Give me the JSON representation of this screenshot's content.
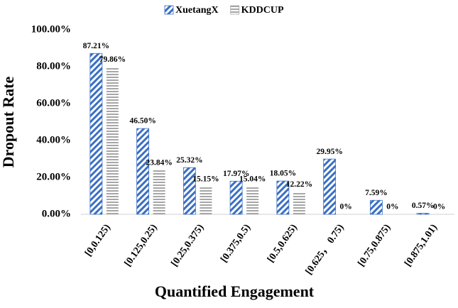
{
  "chart_data": {
    "type": "bar",
    "xlabel": "Quantified Engagement",
    "ylabel": "Dropout  Rate",
    "categories": [
      "[0,0.125)",
      "[0.125,0.25)",
      "[0.25,0.375)",
      "[0.375,0.5)",
      "[0.5,0.625)",
      "[0.625， 0.75)",
      "[0.75,0.875)",
      "[0.875,1.01)"
    ],
    "series": [
      {
        "name": "XuetangX",
        "color": "#3a6fc4",
        "pattern": "diagonal",
        "values": [
          87.21,
          46.5,
          25.32,
          17.97,
          18.05,
          29.95,
          7.59,
          0.57
        ],
        "value_labels": [
          "87.21%",
          "46.50%",
          "25.32%",
          "17.97%",
          "18.05%",
          "29.95%",
          "7.59%",
          "0.57%"
        ]
      },
      {
        "name": "KDDCUP",
        "color": "#a6a6a6",
        "pattern": "horizontal",
        "values": [
          79.86,
          23.84,
          15.15,
          15.04,
          12.22,
          0,
          0,
          0
        ],
        "value_labels": [
          "79.86%",
          "23.84%",
          "15.15%",
          "15.04%",
          "12.22%",
          "0%",
          "0%",
          "0%"
        ]
      }
    ],
    "ylim": [
      0,
      100
    ],
    "yticks": [
      {
        "value": 0,
        "label": "0.00%"
      },
      {
        "value": 20,
        "label": "20.00%"
      },
      {
        "value": 40,
        "label": "40.00%"
      },
      {
        "value": 60,
        "label": "60.00%"
      },
      {
        "value": 80,
        "label": "80.00%"
      },
      {
        "value": 100,
        "label": "100.00%"
      }
    ],
    "grid": false,
    "legend": "top"
  }
}
